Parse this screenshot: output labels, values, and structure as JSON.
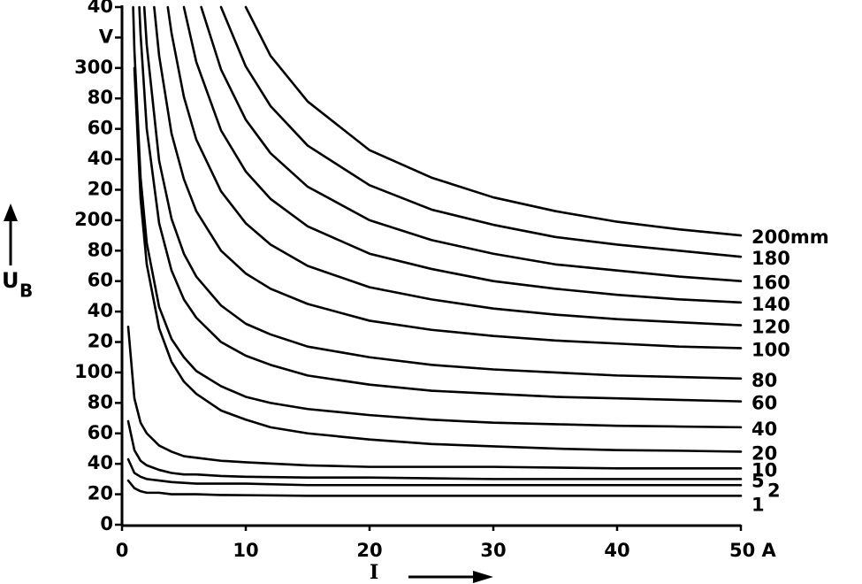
{
  "chart_data": {
    "type": "line",
    "x_label": "I",
    "y_label": "U",
    "y_label_subscript": "B",
    "xlim": [
      0,
      50
    ],
    "ylim": [
      0,
      340
    ],
    "xticks": [
      0,
      10,
      20,
      30,
      40,
      {
        "value": 50,
        "label": "50 A"
      }
    ],
    "yticks": [
      0,
      20,
      40,
      60,
      80,
      100,
      {
        "value": 120,
        "label": "20"
      },
      {
        "value": 140,
        "label": "40"
      },
      {
        "value": 160,
        "label": "60"
      },
      {
        "value": 180,
        "label": "80"
      },
      200,
      {
        "value": 220,
        "label": "20"
      },
      {
        "value": 240,
        "label": "40"
      },
      {
        "value": 260,
        "label": "60"
      },
      {
        "value": 280,
        "label": "80"
      },
      300,
      {
        "value": 320,
        "label": "V"
      },
      {
        "value": 340,
        "label": "40"
      }
    ],
    "grid": false,
    "series": [
      {
        "name": "200mm",
        "color": "#000000",
        "x": [
          10,
          12,
          15,
          20,
          25,
          30,
          35,
          40,
          45,
          50
        ],
        "values": [
          340,
          308,
          278,
          246,
          228,
          215,
          206,
          199,
          194,
          190
        ]
      },
      {
        "name": "180",
        "color": "#000000",
        "x": [
          8,
          10,
          12,
          15,
          20,
          25,
          30,
          35,
          40,
          45,
          50
        ],
        "values": [
          340,
          301,
          275,
          249,
          223,
          207,
          197,
          189,
          184,
          180,
          176
        ]
      },
      {
        "name": "160",
        "color": "#000000",
        "x": [
          6.4,
          8,
          10,
          12,
          15,
          20,
          25,
          30,
          35,
          40,
          45,
          50
        ],
        "values": [
          340,
          299,
          266,
          244,
          222,
          200,
          187,
          178,
          171,
          167,
          163,
          160
        ]
      },
      {
        "name": "140",
        "color": "#000000",
        "x": [
          5,
          6,
          8,
          10,
          12,
          15,
          20,
          25,
          30,
          35,
          40,
          45,
          50
        ],
        "values": [
          340,
          304,
          259,
          232,
          214,
          196,
          178,
          168,
          160,
          155,
          151,
          148,
          146
        ]
      },
      {
        "name": "120",
        "color": "#000000",
        "x": [
          3.7,
          4,
          5,
          6,
          8,
          10,
          12,
          15,
          20,
          25,
          30,
          35,
          40,
          45,
          50
        ],
        "values": [
          340,
          323,
          281,
          253,
          219,
          198,
          184,
          170,
          156,
          148,
          142,
          138,
          135,
          133,
          131
        ]
      },
      {
        "name": "100",
        "color": "#000000",
        "x": [
          2.6,
          3,
          4,
          5,
          6,
          8,
          10,
          12,
          15,
          20,
          25,
          30,
          35,
          40,
          45,
          50
        ],
        "values": [
          340,
          308,
          257,
          227,
          206,
          180,
          165,
          155,
          145,
          134,
          128,
          124,
          121,
          119,
          117,
          116
        ]
      },
      {
        "name": "80",
        "color": "#000000",
        "x": [
          1.8,
          2,
          3,
          4,
          5,
          6,
          8,
          10,
          12,
          15,
          20,
          25,
          30,
          35,
          40,
          45,
          50
        ],
        "values": [
          340,
          315,
          239,
          201,
          178,
          163,
          144,
          132,
          125,
          117,
          110,
          105,
          102,
          100,
          98,
          97,
          96
        ]
      },
      {
        "name": "60",
        "color": "#000000",
        "x": [
          1.4,
          1.5,
          2,
          3,
          4,
          5,
          6,
          8,
          10,
          12,
          15,
          20,
          25,
          30,
          35,
          40,
          45,
          50
        ],
        "values": [
          340,
          322,
          260,
          198,
          167,
          148,
          136,
          120,
          111,
          105,
          98,
          92,
          88,
          86,
          84,
          83,
          82,
          81
        ]
      },
      {
        "name": "40",
        "color": "#000000",
        "x": [
          0.9,
          1,
          1.5,
          2,
          3,
          4,
          5,
          6,
          8,
          10,
          12,
          15,
          20,
          25,
          30,
          35,
          40,
          45,
          50
        ],
        "values": [
          340,
          312,
          228,
          185,
          143,
          122,
          110,
          101,
          91,
          84,
          80,
          76,
          72,
          69,
          67,
          66,
          65,
          64.5,
          64
        ]
      },
      {
        "name": "20",
        "color": "#000000",
        "x": [
          1,
          1.5,
          2,
          3,
          4,
          5,
          6,
          8,
          10,
          12,
          15,
          20,
          25,
          30,
          35,
          40,
          45,
          50
        ],
        "values": [
          300,
          214,
          171,
          129,
          107,
          94,
          86,
          75,
          69,
          64,
          60,
          56,
          53,
          51.5,
          50,
          49,
          48.6,
          48
        ]
      },
      {
        "name": "10",
        "color": "#000000",
        "x": [
          0.5,
          1,
          1.5,
          2,
          3,
          4,
          5,
          6,
          8,
          10,
          15,
          20,
          30,
          40,
          50
        ],
        "values": [
          130,
          83,
          67,
          60,
          52,
          48,
          45,
          44,
          42,
          41,
          39,
          38,
          38,
          37,
          37
        ]
      },
      {
        "name": "5",
        "color": "#000000",
        "x": [
          0.5,
          1,
          1.5,
          2,
          3,
          4,
          5,
          6,
          8,
          10,
          15,
          20,
          30,
          40,
          50
        ],
        "values": [
          68,
          49,
          42,
          39,
          36,
          34,
          33,
          33,
          32,
          31.5,
          31,
          31,
          30,
          30,
          30
        ]
      },
      {
        "name": "2",
        "color": "#000000",
        "x": [
          0.5,
          1,
          1.5,
          2,
          3,
          4,
          5,
          6,
          8,
          10,
          15,
          20,
          30,
          40,
          50
        ],
        "values": [
          43,
          34,
          31.5,
          30,
          29,
          28,
          27.5,
          27,
          27,
          27,
          26,
          26,
          26,
          26,
          26
        ]
      },
      {
        "name": "1",
        "color": "#000000",
        "x": [
          0.5,
          1,
          1.5,
          2,
          3,
          4,
          5,
          6,
          8,
          10,
          15,
          20,
          30,
          40,
          50
        ],
        "values": [
          29,
          24,
          22,
          21,
          21,
          20,
          20,
          20,
          19.5,
          19.4,
          19,
          19,
          19,
          19,
          19
        ]
      }
    ]
  }
}
